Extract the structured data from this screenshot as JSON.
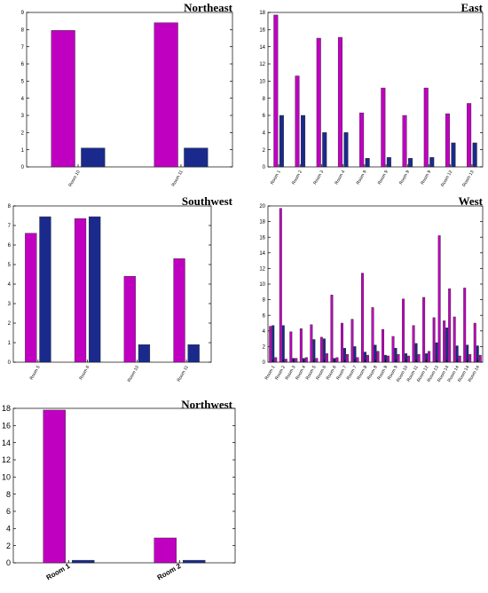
{
  "colors": {
    "series1": "#c000c0",
    "series2": "#1a2a8c",
    "axis": "#000000"
  },
  "chart_data": [
    {
      "type": "bar",
      "title": "Northeast",
      "categories": [
        "Room 10",
        "Room 11"
      ],
      "series": [
        {
          "values": [
            7.95,
            8.4
          ]
        },
        {
          "values": [
            1.1,
            1.1
          ]
        }
      ],
      "ylim": [
        0,
        9
      ],
      "yticks": [
        0,
        1,
        2,
        3,
        4,
        5,
        6,
        7,
        8,
        9
      ],
      "grid": false
    },
    {
      "type": "bar",
      "title": "East",
      "categories": [
        "Room 1",
        "Room 2",
        "Room 3",
        "Room 4",
        "Room 9",
        "Room 9",
        "Room 9",
        "Room 9",
        "Room 12",
        "Room 13"
      ],
      "series": [
        {
          "values": [
            17.7,
            10.6,
            15.0,
            15.1,
            6.3,
            9.2,
            6.0,
            9.2,
            6.2,
            7.4
          ]
        },
        {
          "values": [
            6.0,
            6.0,
            4.0,
            4.0,
            1.0,
            1.1,
            1.0,
            1.1,
            2.8,
            2.8
          ]
        }
      ],
      "ylim": [
        0,
        18
      ],
      "yticks": [
        0,
        2,
        4,
        6,
        8,
        10,
        12,
        14,
        16,
        18
      ],
      "grid": false
    },
    {
      "type": "bar",
      "title": "Southwest",
      "categories": [
        "Room 5",
        "Room 6",
        "Room 10",
        "Room 11"
      ],
      "series": [
        {
          "values": [
            6.6,
            7.35,
            4.4,
            5.3
          ]
        },
        {
          "values": [
            7.45,
            7.45,
            0.9,
            0.9
          ]
        }
      ],
      "ylim": [
        0,
        8
      ],
      "yticks": [
        0,
        1,
        2,
        3,
        4,
        5,
        6,
        7,
        8
      ],
      "grid": false
    },
    {
      "type": "bar",
      "title": "West",
      "categories": [
        "Room 1",
        "Room 2",
        "Room 3",
        "Room 4",
        "Room 5",
        "Room 6",
        "Room 6",
        "Room 7",
        "Room 7",
        "Room 8",
        "Room 8",
        "Room 9",
        "Room 9",
        "Room 10",
        "Room 11",
        "Room 12",
        "Room 13",
        "Room 14",
        "Room 14",
        "Room 14",
        "Room 14"
      ],
      "series": [
        {
          "values": [
            4.6,
            19.7,
            3.9,
            4.3,
            4.8,
            3.2,
            8.6,
            5.0,
            5.5,
            11.4,
            7.0,
            4.2,
            3.3,
            8.1,
            4.7,
            8.3,
            5.7,
            5.3,
            5.8,
            9.5,
            5.0
          ]
        },
        {
          "values": [
            4.7,
            4.7,
            0.5,
            0.5,
            2.9,
            3.0,
            0.5,
            1.8,
            2.0,
            1.3,
            2.2,
            0.9,
            1.8,
            1.1,
            2.4,
            1.1,
            2.5,
            4.4,
            2.1,
            2.2,
            2.1
          ]
        },
        {
          "values": [
            0.6,
            0.4,
            0.5,
            0.6,
            0.5,
            1.1,
            0.6,
            1.0,
            0.6,
            0.9,
            1.4,
            0.8,
            1.0,
            0.8,
            1.0,
            1.4,
            16.2,
            9.4,
            0.8,
            1.0,
            0.9
          ]
        }
      ],
      "ylim": [
        0,
        20
      ],
      "yticks": [
        0,
        2,
        4,
        6,
        8,
        10,
        12,
        14,
        16,
        18,
        20
      ],
      "grid": false
    },
    {
      "type": "bar",
      "title": "Northwest",
      "categories": [
        "Room 1",
        "Room 2"
      ],
      "series": [
        {
          "values": [
            17.8,
            2.9
          ]
        },
        {
          "values": [
            0.3,
            0.3
          ]
        }
      ],
      "ylim": [
        0,
        18
      ],
      "yticks": [
        0,
        2,
        4,
        6,
        8,
        10,
        12,
        14,
        16,
        18
      ],
      "grid": false
    }
  ]
}
